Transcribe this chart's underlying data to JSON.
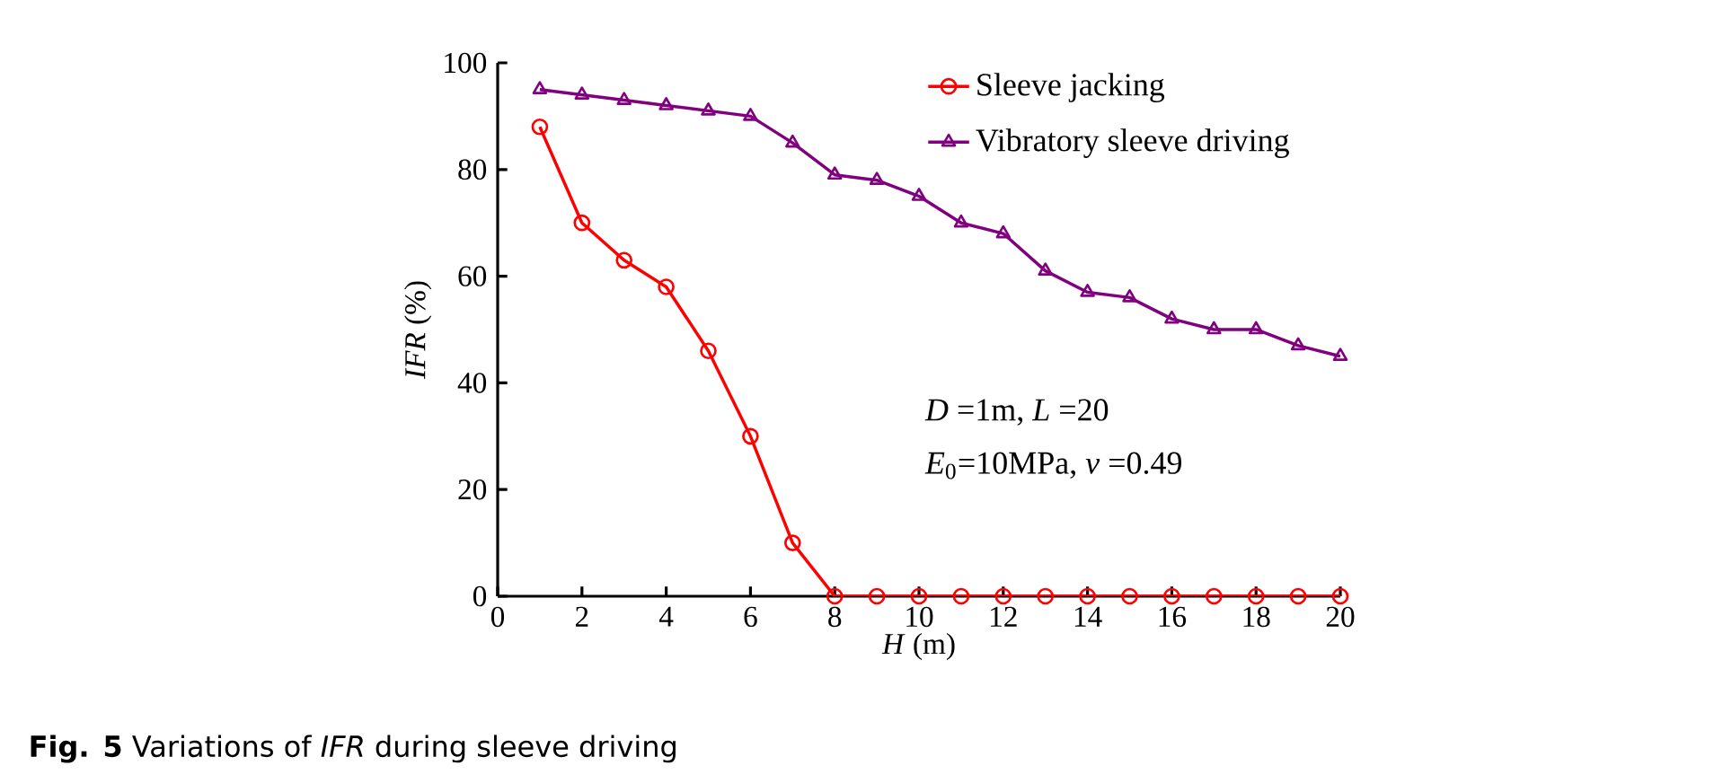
{
  "chart_data": {
    "type": "line",
    "xlabel": "*H* (m)",
    "ylabel": "*IFR* (%)",
    "x": [
      1,
      2,
      3,
      4,
      5,
      6,
      7,
      8,
      9,
      10,
      11,
      12,
      13,
      14,
      15,
      16,
      17,
      18,
      19,
      20
    ],
    "series": [
      {
        "name": "Sleeve jacking",
        "color": "#ff0000",
        "marker": "circle",
        "values": [
          88,
          70,
          63,
          58,
          46,
          30,
          10,
          0,
          0,
          0,
          0,
          0,
          0,
          0,
          0,
          0,
          0,
          0,
          0,
          0
        ]
      },
      {
        "name": "Vibratory sleeve driving",
        "color": "#800080",
        "marker": "triangle",
        "values": [
          95,
          94,
          93,
          92,
          91,
          90,
          85,
          79,
          78,
          75,
          70,
          68,
          61,
          57,
          56,
          52,
          50,
          50,
          47,
          45
        ]
      }
    ],
    "xlim": [
      0,
      20
    ],
    "xticks": [
      0,
      2,
      4,
      6,
      8,
      10,
      12,
      14,
      16,
      18,
      20
    ],
    "ylim": [
      0,
      100
    ],
    "yticks": [
      0,
      20,
      40,
      60,
      80,
      100
    ],
    "grid": false,
    "legend": "top right",
    "line_style": "solid",
    "annotations": [
      "*D* =1m, *L* =20",
      "*E*$_{0}$=10MPa, *v* =0.49",
      "**Fig. 5**  Variations of *IFR* during sleeve driving"
    ]
  }
}
